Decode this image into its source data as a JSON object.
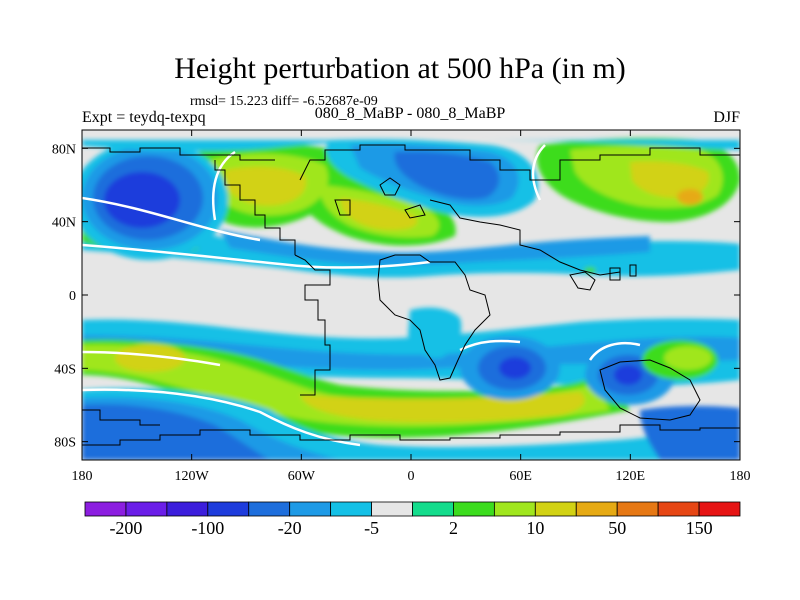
{
  "title": "Height perturbation at 500 hPa (in m)",
  "stats": "rmsd= 15.223 diff= -6.52687e-09",
  "experiment": "Expt = teydq-texpq",
  "comparison": "080_8_MaBP - 080_8_MaBP",
  "season": "DJF",
  "axes": {
    "lon_range": [
      -180,
      180
    ],
    "lat_range": [
      -90,
      90
    ],
    "x_ticks": [
      {
        "value": -180,
        "label": "180"
      },
      {
        "value": -120,
        "label": "120W"
      },
      {
        "value": -60,
        "label": "60W"
      },
      {
        "value": 0,
        "label": "0"
      },
      {
        "value": 60,
        "label": "60E"
      },
      {
        "value": 120,
        "label": "120E"
      },
      {
        "value": 180,
        "label": "180"
      }
    ],
    "y_ticks": [
      {
        "value": 80,
        "label": "80N"
      },
      {
        "value": 40,
        "label": "40N"
      },
      {
        "value": 0,
        "label": "0"
      },
      {
        "value": -40,
        "label": "40S"
      },
      {
        "value": -80,
        "label": "80S"
      }
    ]
  },
  "colorbar": {
    "colors": [
      "#8c1ee0",
      "#6b1ee8",
      "#3c1edc",
      "#1e3cdc",
      "#1e6edc",
      "#1e9ae6",
      "#14c0e6",
      "#e6e6e6",
      "#14dc8c",
      "#3cdc1e",
      "#a0e61e",
      "#d2d214",
      "#e6aa14",
      "#e67814",
      "#e64614",
      "#e61414"
    ],
    "labels": [
      {
        "boundary": 1,
        "text": "-200"
      },
      {
        "boundary": 3,
        "text": "-100"
      },
      {
        "boundary": 5,
        "text": "-20"
      },
      {
        "boundary": 7,
        "text": "-5"
      },
      {
        "boundary": 9,
        "text": "2"
      },
      {
        "boundary": 11,
        "text": "10"
      },
      {
        "boundary": 13,
        "text": "50"
      },
      {
        "boundary": 15,
        "text": "150"
      }
    ]
  },
  "field_colors": {
    "background": "#e6e6e6",
    "ring_light_blue": "#14c0e6",
    "mid_blue": "#1e9ae6",
    "deep_blue": "#1e6edc",
    "core_blue": "#1e3cdc",
    "green": "#3cdc1e",
    "lime": "#a0e61e",
    "yellow": "#d2d214"
  }
}
